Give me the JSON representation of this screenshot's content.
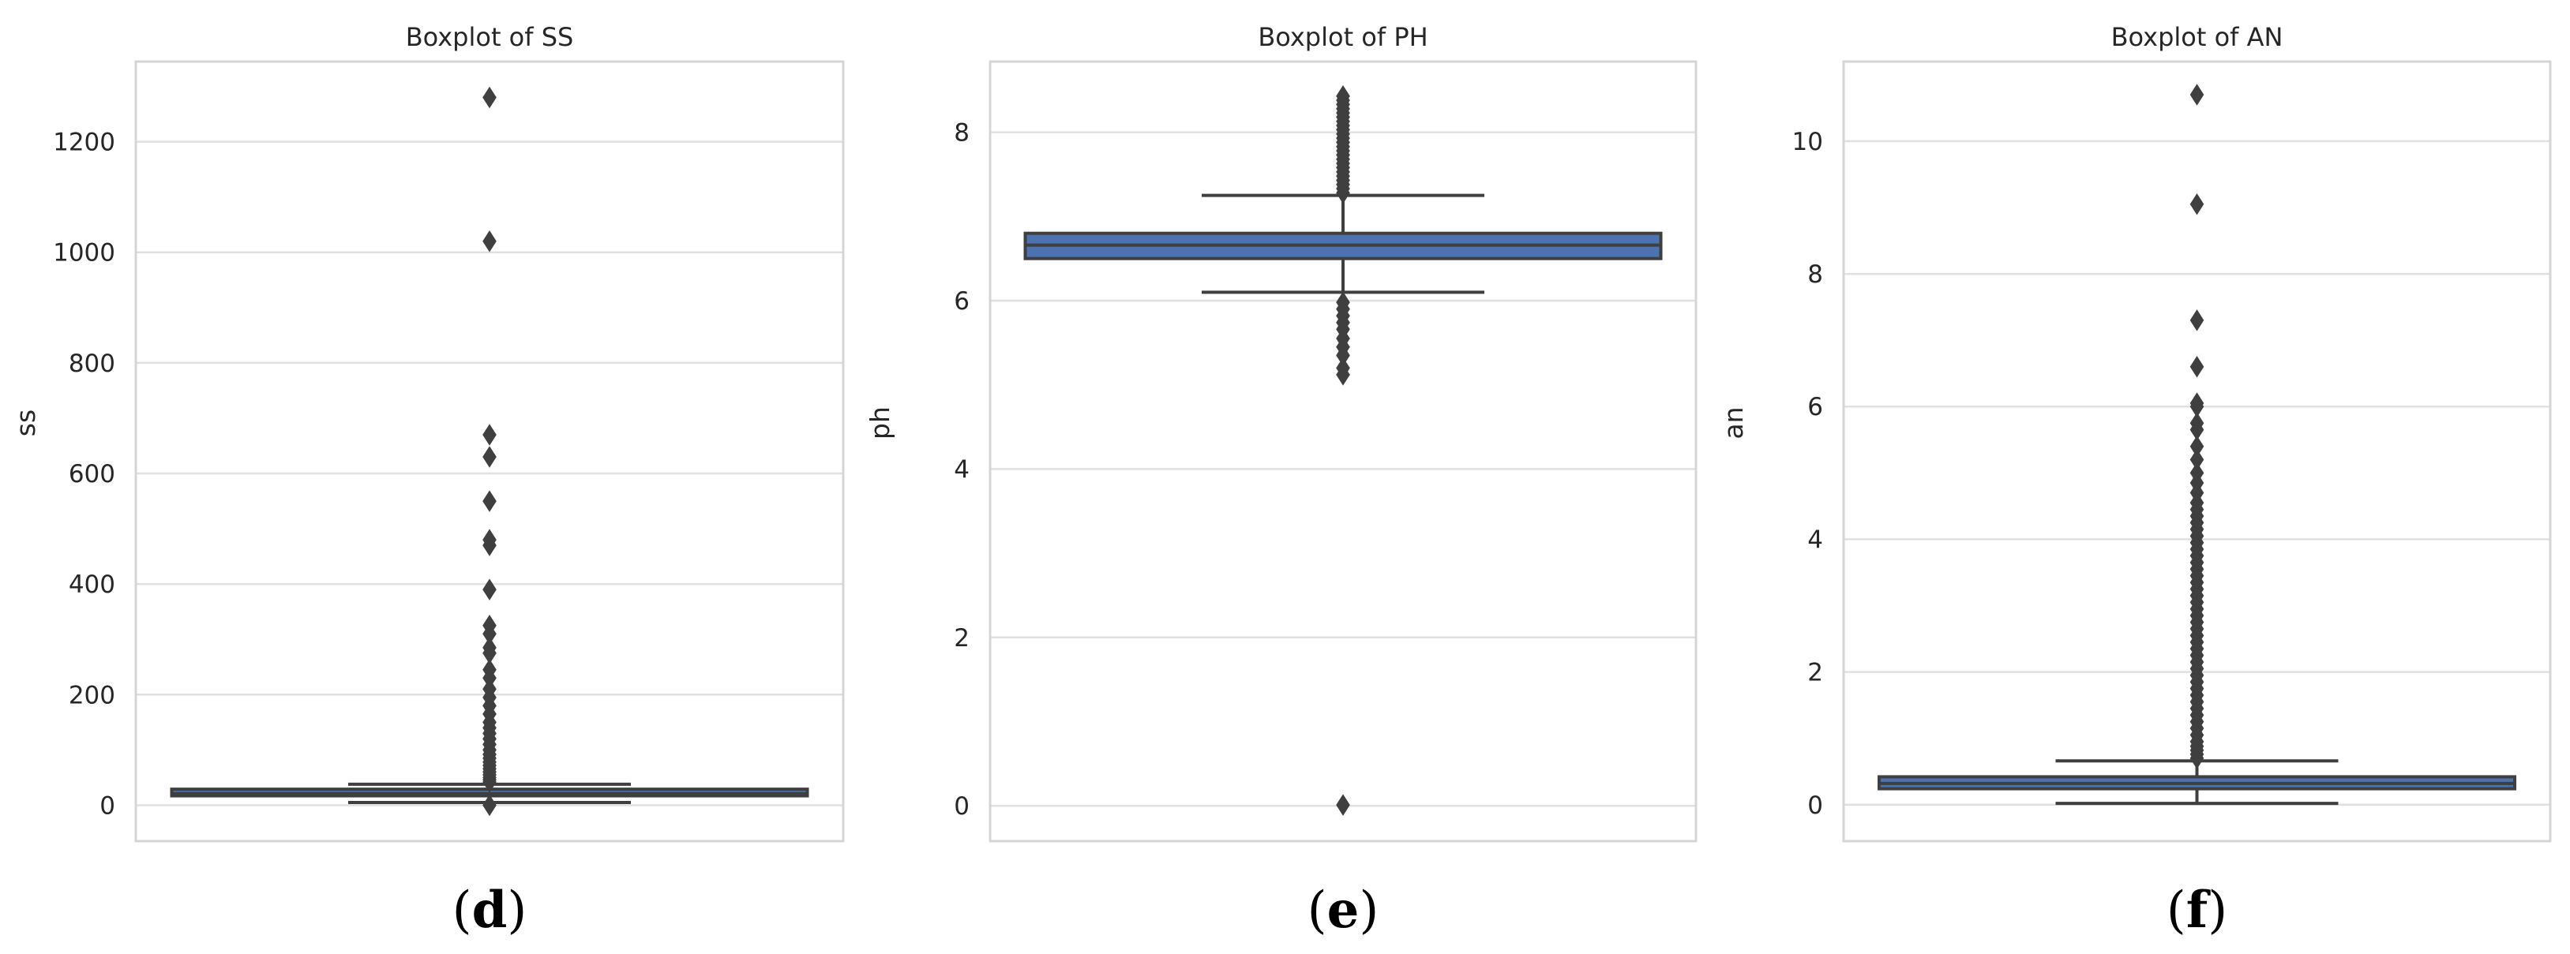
{
  "chart_data": [
    {
      "type": "boxplot",
      "title": "Boxplot of SS",
      "ylabel": "ss",
      "xlabel": "",
      "caption": {
        "open": "(",
        "letter": "d",
        "close": ")"
      },
      "ylim": [
        -65,
        1345
      ],
      "yticks": [
        0,
        200,
        400,
        600,
        800,
        1000,
        1200
      ],
      "grid": true,
      "box_color": "#4c72b0",
      "line_color": "#3f3f3f",
      "box": {
        "q1": 17,
        "median": 21,
        "q3": 29,
        "whisker_low": 5,
        "whisker_high": 38
      },
      "outliers": [
        1280,
        1020,
        670,
        630,
        550,
        480,
        470,
        390,
        325,
        310,
        285,
        275,
        245,
        230,
        210,
        195,
        180,
        165,
        150,
        140,
        130,
        120,
        110,
        100,
        92,
        85,
        78,
        72,
        66,
        60,
        55,
        50,
        46,
        42,
        0
      ]
    },
    {
      "type": "boxplot",
      "title": "Boxplot of PH",
      "ylabel": "ph",
      "xlabel": "",
      "caption": {
        "open": "(",
        "letter": "e",
        "close": ")"
      },
      "ylim": [
        -0.42,
        8.84
      ],
      "yticks": [
        0,
        2,
        4,
        6,
        8
      ],
      "grid": true,
      "box_color": "#4c72b0",
      "line_color": "#3f3f3f",
      "box": {
        "q1": 6.5,
        "median": 6.66,
        "q3": 6.8,
        "whisker_low": 6.1,
        "whisker_high": 7.25
      },
      "outliers": [
        8.43,
        8.38,
        8.33,
        8.28,
        8.23,
        8.18,
        8.13,
        8.08,
        8.03,
        7.98,
        7.93,
        7.88,
        7.83,
        7.78,
        7.73,
        7.68,
        7.63,
        7.58,
        7.53,
        7.48,
        7.43,
        7.38,
        7.33,
        7.28,
        5.98,
        5.9,
        5.82,
        5.74,
        5.66,
        5.55,
        5.45,
        5.35,
        5.2,
        5.12,
        0.01
      ]
    },
    {
      "type": "boxplot",
      "title": "Boxplot of AN",
      "ylabel": "an",
      "xlabel": "",
      "caption": {
        "open": "(",
        "letter": "f",
        "close": ")"
      },
      "ylim": [
        -0.55,
        11.2
      ],
      "yticks": [
        0,
        2,
        4,
        6,
        8,
        10
      ],
      "grid": true,
      "box_color": "#4c72b0",
      "line_color": "#3f3f3f",
      "box": {
        "q1": 0.24,
        "median": 0.32,
        "q3": 0.42,
        "whisker_low": 0.02,
        "whisker_high": 0.66
      },
      "outliers": [
        10.7,
        9.05,
        7.3,
        6.6,
        6.05,
        6.0,
        5.75,
        5.65,
        5.4,
        5.2,
        5.0,
        4.85,
        4.7,
        4.55,
        4.45,
        4.35,
        4.25,
        4.15,
        4.05,
        3.95,
        3.85,
        3.75,
        3.65,
        3.55,
        3.45,
        3.35,
        3.25,
        3.15,
        3.05,
        2.95,
        2.85,
        2.75,
        2.65,
        2.55,
        2.45,
        2.35,
        2.25,
        2.15,
        2.05,
        1.95,
        1.85,
        1.75,
        1.65,
        1.55,
        1.45,
        1.35,
        1.25,
        1.15,
        1.05,
        0.95,
        0.88,
        0.82,
        0.76,
        0.7
      ]
    }
  ]
}
